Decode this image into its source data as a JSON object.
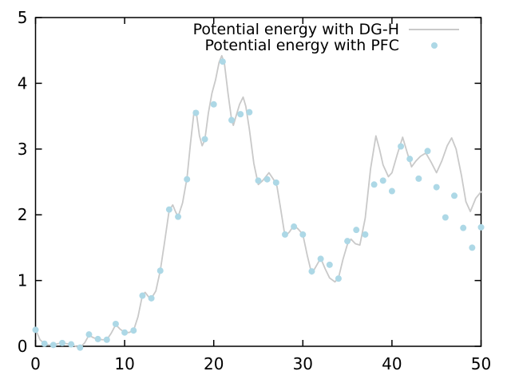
{
  "chart_data": {
    "type": "line",
    "title": "",
    "xlabel": "",
    "ylabel": "",
    "xlim": [
      0,
      50
    ],
    "ylim": [
      0,
      5
    ],
    "x_ticks": [
      0,
      10,
      20,
      30,
      40,
      50
    ],
    "y_ticks": [
      0,
      1,
      2,
      3,
      4,
      5
    ],
    "grid": false,
    "background_color": "#ffffff",
    "border_color": "#000000",
    "legend_position": "top-right-inside",
    "series": [
      {
        "name": "Potential energy with DG-H",
        "type": "line",
        "color": "#c9c9c9",
        "points": [
          [
            0,
            0.26
          ],
          [
            0.5,
            0.1
          ],
          [
            1,
            0.04
          ],
          [
            1.5,
            0.02
          ],
          [
            2,
            0.02
          ],
          [
            2.5,
            0.04
          ],
          [
            3,
            0.05
          ],
          [
            3.5,
            0.04
          ],
          [
            4,
            0.03
          ],
          [
            4.5,
            0.0
          ],
          [
            5,
            -0.02
          ],
          [
            5.5,
            0.05
          ],
          [
            6,
            0.17
          ],
          [
            6.5,
            0.13
          ],
          [
            7,
            0.11
          ],
          [
            7.5,
            0.1
          ],
          [
            8,
            0.1
          ],
          [
            8.5,
            0.2
          ],
          [
            9,
            0.33
          ],
          [
            9.5,
            0.26
          ],
          [
            10,
            0.21
          ],
          [
            10.5,
            0.21
          ],
          [
            11,
            0.24
          ],
          [
            11.5,
            0.45
          ],
          [
            12,
            0.78
          ],
          [
            12.3,
            0.82
          ],
          [
            12.7,
            0.75
          ],
          [
            13,
            0.73
          ],
          [
            13.5,
            0.84
          ],
          [
            14,
            1.15
          ],
          [
            14.5,
            1.6
          ],
          [
            15,
            2.07
          ],
          [
            15.4,
            2.15
          ],
          [
            15.7,
            2.05
          ],
          [
            16,
            1.97
          ],
          [
            16.5,
            2.18
          ],
          [
            17,
            2.56
          ],
          [
            17.4,
            3.1
          ],
          [
            17.8,
            3.58
          ],
          [
            18.1,
            3.5
          ],
          [
            18.4,
            3.2
          ],
          [
            18.7,
            3.05
          ],
          [
            19,
            3.14
          ],
          [
            19.4,
            3.55
          ],
          [
            19.8,
            3.85
          ],
          [
            20.2,
            4.05
          ],
          [
            20.6,
            4.32
          ],
          [
            20.9,
            4.42
          ],
          [
            21.2,
            4.3
          ],
          [
            21.6,
            3.85
          ],
          [
            22,
            3.45
          ],
          [
            22.2,
            3.36
          ],
          [
            22.5,
            3.5
          ],
          [
            22.9,
            3.68
          ],
          [
            23.3,
            3.79
          ],
          [
            23.6,
            3.65
          ],
          [
            24,
            3.3
          ],
          [
            24.5,
            2.78
          ],
          [
            25,
            2.46
          ],
          [
            25.5,
            2.52
          ],
          [
            26.2,
            2.64
          ],
          [
            26.7,
            2.54
          ],
          [
            27.1,
            2.43
          ],
          [
            27.5,
            2.1
          ],
          [
            28,
            1.67
          ],
          [
            28.5,
            1.74
          ],
          [
            29,
            1.84
          ],
          [
            29.5,
            1.78
          ],
          [
            30,
            1.7
          ],
          [
            30.5,
            1.38
          ],
          [
            31,
            1.1
          ],
          [
            31.5,
            1.22
          ],
          [
            32,
            1.34
          ],
          [
            32.5,
            1.18
          ],
          [
            33,
            1.04
          ],
          [
            33.6,
            0.98
          ],
          [
            34,
            1.04
          ],
          [
            34.5,
            1.32
          ],
          [
            35,
            1.55
          ],
          [
            35.4,
            1.63
          ],
          [
            35.9,
            1.56
          ],
          [
            36.4,
            1.54
          ],
          [
            37,
            1.95
          ],
          [
            37.6,
            2.7
          ],
          [
            38.2,
            3.2
          ],
          [
            38.6,
            3.0
          ],
          [
            39,
            2.76
          ],
          [
            39.6,
            2.58
          ],
          [
            40,
            2.64
          ],
          [
            40.6,
            2.92
          ],
          [
            41.2,
            3.18
          ],
          [
            41.7,
            2.95
          ],
          [
            42.2,
            2.73
          ],
          [
            42.7,
            2.82
          ],
          [
            43.2,
            2.89
          ],
          [
            43.8,
            2.94
          ],
          [
            44.4,
            2.8
          ],
          [
            45,
            2.64
          ],
          [
            45.6,
            2.82
          ],
          [
            46.2,
            3.05
          ],
          [
            46.7,
            3.17
          ],
          [
            47.2,
            3.0
          ],
          [
            47.8,
            2.6
          ],
          [
            48.3,
            2.2
          ],
          [
            48.8,
            2.05
          ],
          [
            49.4,
            2.25
          ],
          [
            50,
            2.35
          ]
        ]
      },
      {
        "name": "Potential energy with PFC",
        "type": "scatter",
        "color": "#add8e6",
        "points": [
          [
            0,
            0.25
          ],
          [
            1,
            0.04
          ],
          [
            2,
            0.02
          ],
          [
            3,
            0.05
          ],
          [
            4,
            0.03
          ],
          [
            5,
            -0.02
          ],
          [
            6,
            0.18
          ],
          [
            7,
            0.11
          ],
          [
            8,
            0.1
          ],
          [
            9,
            0.34
          ],
          [
            10,
            0.21
          ],
          [
            11,
            0.24
          ],
          [
            12,
            0.77
          ],
          [
            13,
            0.73
          ],
          [
            14,
            1.15
          ],
          [
            15,
            2.08
          ],
          [
            16,
            1.97
          ],
          [
            17,
            2.54
          ],
          [
            18,
            3.55
          ],
          [
            19,
            3.15
          ],
          [
            20,
            3.68
          ],
          [
            21,
            4.33
          ],
          [
            22,
            3.44
          ],
          [
            23,
            3.53
          ],
          [
            24,
            3.56
          ],
          [
            25,
            2.52
          ],
          [
            26,
            2.54
          ],
          [
            27,
            2.49
          ],
          [
            28,
            1.7
          ],
          [
            29,
            1.82
          ],
          [
            30,
            1.7
          ],
          [
            31,
            1.14
          ],
          [
            32,
            1.33
          ],
          [
            33,
            1.24
          ],
          [
            34,
            1.03
          ],
          [
            35,
            1.6
          ],
          [
            36,
            1.77
          ],
          [
            37,
            1.7
          ],
          [
            38,
            2.46
          ],
          [
            39,
            2.52
          ],
          [
            40,
            2.36
          ],
          [
            41,
            3.04
          ],
          [
            42,
            2.85
          ],
          [
            43,
            2.55
          ],
          [
            44,
            2.97
          ],
          [
            45,
            2.42
          ],
          [
            46,
            1.96
          ],
          [
            47,
            2.29
          ],
          [
            48,
            1.8
          ],
          [
            49,
            1.5
          ],
          [
            50,
            1.81
          ]
        ]
      }
    ]
  }
}
